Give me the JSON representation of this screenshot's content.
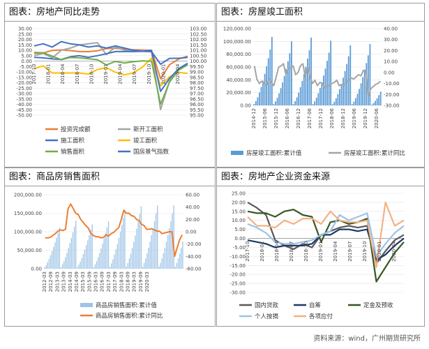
{
  "panels": {
    "p1": {
      "title": "图表：房地产同比走势"
    },
    "p2": {
      "title": "图表：房屋竣工面积"
    },
    "p3": {
      "title": "图表：商品房销售面积"
    },
    "p4": {
      "title": "图表：房地产企业资金来源"
    }
  },
  "source": "资料来源：wind，广州期货研究所",
  "chart_data": [
    {
      "id": "p1",
      "type": "line",
      "title": "",
      "x": [
        "2017-10",
        "2017-12",
        "2018-02",
        "2018-04",
        "2018-06",
        "2018-08",
        "2018-10",
        "2018-12",
        "2019-02",
        "2019-04",
        "2019-06",
        "2019-08",
        "2019-10",
        "2019-12",
        "2020-02",
        "2020-04",
        "2020-06",
        "2020-08"
      ],
      "xticks": [
        "2017-10",
        "2018-01",
        "2018-04",
        "2018-07",
        "2018-10",
        "2019-01",
        "2019-04",
        "2019-07",
        "2019-10",
        "2020-01",
        "2020-04"
      ],
      "ylim": [
        -50,
        30
      ],
      "yticks": [
        30,
        25,
        20,
        15,
        10,
        5,
        0,
        -5,
        -10,
        -15,
        -20,
        -25,
        -30,
        -35,
        -40,
        -45,
        -50
      ],
      "ytick_labels": [
        "30.00",
        "25.00",
        "20.00",
        "15.00",
        "10.00",
        "5.00",
        "0.00",
        "-5.00",
        "-10.00",
        "-15.00",
        "-20.00",
        "-25.00",
        "-30.00",
        "-35.00",
        "-40.00",
        "-45.00",
        "-50.00"
      ],
      "y2lim": [
        95,
        103
      ],
      "y2ticks": [
        103,
        102.5,
        102,
        101.5,
        101,
        100.5,
        100,
        99.5,
        99,
        98.5,
        98,
        97.5,
        97,
        96.5,
        96,
        95.5,
        95
      ],
      "y2tick_labels": [
        "103.00",
        "102.50",
        "102.00",
        "101.50",
        "101.00",
        "100.50",
        "100.00",
        "99.50",
        "99.00",
        "98.50",
        "98.00",
        "97.50",
        "97.00",
        "96.50",
        "96.00",
        "95.50",
        "95.00"
      ],
      "series": [
        {
          "name": "投资完成额",
          "color": "#ed7d31",
          "axis": "left",
          "values": [
            7,
            7.5,
            9.9,
            10.3,
            9.7,
            8.8,
            8.7,
            9.5,
            11.6,
            11.9,
            10.9,
            10.5,
            10.3,
            9.9,
            -16.3,
            -3.3,
            1.9,
            4.6
          ]
        },
        {
          "name": "新开工面积",
          "color": "#a5a5a5",
          "axis": "left",
          "values": [
            5,
            7,
            3,
            10,
            12,
            15,
            16,
            17,
            6,
            13,
            10,
            9,
            10,
            8.5,
            -44.9,
            -18.4,
            -7.6,
            -3.6
          ]
        },
        {
          "name": "施工面积",
          "color": "#4472c4",
          "axis": "left",
          "values": [
            3.5,
            3,
            2,
            1.5,
            4,
            5,
            3.5,
            5,
            6.8,
            8.8,
            8.8,
            8.8,
            9,
            8.7,
            -2.9,
            2.5,
            2.6,
            3.4
          ]
        },
        {
          "name": "竣工面积",
          "color": "#ffc000",
          "axis": "left",
          "values": [
            -7,
            -4.4,
            -11,
            -11,
            -11,
            -11,
            -12,
            -7.8,
            -6.1,
            -10.3,
            -12.7,
            -10.9,
            -5.5,
            2.6,
            -22.9,
            -14.5,
            -10.5,
            -11.4
          ]
        },
        {
          "name": "销售面积",
          "color": "#70ad47",
          "axis": "left",
          "values": [
            8,
            7.7,
            4.6,
            1.3,
            3.3,
            3,
            2.2,
            1.3,
            -3.6,
            -0.3,
            -1.8,
            -0.6,
            0.1,
            -0.1,
            -39.9,
            -19.3,
            -8.4,
            -3.3
          ]
        },
        {
          "name": "国房景气指数",
          "color": "#4472c4",
          "axis": "right",
          "values": [
            101.4,
            101.6,
            101.3,
            101.8,
            101.6,
            101.5,
            101.3,
            101.4,
            101.2,
            101.4,
            101.2,
            101.0,
            100.9,
            101.0,
            97.2,
            98.4,
            99.3,
            99.8
          ]
        }
      ]
    },
    {
      "id": "p2",
      "type": "bar",
      "title": "",
      "xticks": [
        "2014-12",
        "2015-06",
        "2015-12",
        "2016-06",
        "2016-12",
        "2017-06",
        "2017-12",
        "2018-06",
        "2018-12",
        "2019-06",
        "2019-12",
        "2020-06"
      ],
      "ylim": [
        0,
        120000
      ],
      "yticks": [
        120000,
        100000,
        80000,
        60000,
        40000,
        20000,
        0
      ],
      "ytick_labels": [
        "120,000.00",
        "100,000.00",
        "80,000.00",
        "60,000.00",
        "40,000.00",
        "20,000.00",
        "0.00"
      ],
      "y2lim": [
        -30,
        40
      ],
      "y2ticks": [
        40,
        30,
        20,
        10,
        0,
        -10,
        -20,
        -30
      ],
      "y2tick_labels": [
        "40.00",
        "30.00",
        "20.00",
        "10.00",
        "0.00",
        "-10.00",
        "-20.00",
        "-30.00"
      ],
      "series": [
        {
          "name": "房屋竣工面积:累计值",
          "kind": "bar",
          "color": "#5b9bd5",
          "axis": "left",
          "year_totals": [
            107000,
            100000,
            106000,
            101000,
            94000,
            95900,
            59500
          ]
        },
        {
          "name": "房屋竣工面积:累计同比",
          "kind": "line",
          "color": "#a5a5a5",
          "axis": "right",
          "values": [
            6,
            -6,
            -10,
            -8,
            -10,
            -12,
            -6,
            -9,
            -12,
            -4,
            5,
            6,
            8,
            -2,
            3,
            4,
            6,
            -2,
            0,
            6,
            8,
            -4,
            5,
            -4,
            -10,
            -7,
            -12,
            -9,
            -10,
            -14,
            -12,
            -12,
            -10,
            -9,
            -7,
            -12,
            -11,
            -11,
            -9,
            -7,
            -5,
            -6,
            -4,
            -2,
            -3,
            2,
            2,
            -22,
            -15,
            -13,
            -11,
            -10,
            -8
          ]
        }
      ]
    },
    {
      "id": "p3",
      "type": "bar",
      "title": "",
      "xticks": [
        "2012-03",
        "2012-09",
        "2013-03",
        "2013-09",
        "2014-03",
        "2014-09",
        "2015-03",
        "2015-09",
        "2016-03",
        "2016-09",
        "2017-03",
        "2017-09",
        "2018-03",
        "2018-09",
        "2019-03",
        "2019-09",
        "2020-03"
      ],
      "extra_xticks": [
        "2018-12",
        "2019-06",
        "2020-06"
      ],
      "ylim": [
        0,
        200000
      ],
      "yticks": [
        200000,
        150000,
        100000,
        50000,
        0
      ],
      "ytick_labels": [
        "200,000.00",
        "150,000.00",
        "100,000.00",
        "50,000.00",
        "0.00"
      ],
      "y2lim": [
        -60,
        60
      ],
      "y2ticks": [
        60,
        40,
        20,
        0,
        -20,
        -40,
        -60
      ],
      "y2tick_labels": [
        "60.00",
        "40.00",
        "20.00",
        "0.00",
        "-20.00",
        "-40.00",
        "-60.00"
      ],
      "series": [
        {
          "name": "商品房销售面积:累计值",
          "kind": "bar",
          "color": "#9dc3e6",
          "axis": "left",
          "year_totals": [
            111000,
            130000,
            120000,
            128000,
            157000,
            169000,
            171000,
            171000,
            172000
          ]
        },
        {
          "name": "商品房销售面积:累计同比",
          "kind": "line",
          "color": "#ed7d31",
          "axis": "right",
          "values": [
            -10,
            -10,
            -9,
            -6,
            -3,
            1,
            3,
            2,
            4,
            37,
            45,
            38,
            30,
            28,
            20,
            15,
            10,
            6,
            -3,
            -6,
            -8,
            -8,
            -10,
            -9,
            -5,
            -7,
            -3,
            -1,
            3,
            7,
            20,
            35,
            30,
            30,
            26,
            25,
            20,
            18,
            12,
            10,
            4,
            4,
            5,
            3,
            1,
            1,
            -3,
            -2,
            -1,
            0,
            0,
            -40,
            -26,
            -13,
            -5
          ]
        }
      ]
    },
    {
      "id": "p4",
      "type": "line",
      "title": "",
      "x": [
        "2017-10",
        "2017-12",
        "2018-02",
        "2018-04",
        "2018-06",
        "2018-08",
        "2018-10",
        "2018-12",
        "2019-02",
        "2019-04",
        "2019-06",
        "2019-08",
        "2019-10",
        "2019-12",
        "2020-02",
        "2020-04",
        "2020-06",
        "2020-08"
      ],
      "xticks": [
        "2017-10",
        "2018-01",
        "2018-04",
        "2018-07",
        "2018-10",
        "2019-01",
        "2019-04",
        "2019-07",
        "2019-10",
        "2020-01",
        "2020-04"
      ],
      "ylim": [
        -30,
        25
      ],
      "yticks": [
        25,
        20,
        15,
        10,
        5,
        0,
        -5,
        -10,
        -15,
        -20,
        -25,
        -30
      ],
      "ytick_labels": [
        "25.00",
        "20.00",
        "15.00",
        "10.00",
        "5.00",
        "0.00",
        "-5.00",
        "-10.00",
        "-15.00",
        "-20.00",
        "-25.00",
        "-30.00"
      ],
      "series": [
        {
          "name": "国内贷款",
          "color": "#595959",
          "values": [
            20,
            17,
            13,
            -1,
            -4,
            -6,
            -3,
            -5,
            2,
            4,
            6,
            7,
            6,
            7,
            -14,
            -7,
            -1,
            2
          ]
        },
        {
          "name": "自筹",
          "color": "#1f3864",
          "values": [
            -1,
            -2,
            -3,
            -5,
            -4,
            -4,
            -4,
            -3,
            2,
            2,
            5,
            5,
            4,
            5,
            -12,
            -9,
            -4,
            0
          ]
        },
        {
          "name": "定金及预收",
          "color": "#375623",
          "values": [
            15,
            14,
            14,
            12,
            15,
            16,
            13,
            12,
            -2,
            9,
            10,
            8,
            9,
            11,
            -24,
            -16,
            -8,
            -2
          ]
        },
        {
          "name": "个人按揭",
          "color": "#9dc3e6",
          "values": [
            8,
            6,
            3,
            -2,
            -3,
            -3,
            -2,
            -1,
            2,
            4,
            13,
            10,
            12,
            14,
            -10,
            -3,
            3,
            7
          ]
        },
        {
          "name": "各项应付",
          "color": "#f4b183",
          "values": [
            12,
            7,
            7,
            6,
            10,
            8,
            11,
            11,
            8,
            15,
            10,
            9,
            9,
            10,
            -16,
            20,
            7,
            10
          ]
        }
      ]
    }
  ]
}
